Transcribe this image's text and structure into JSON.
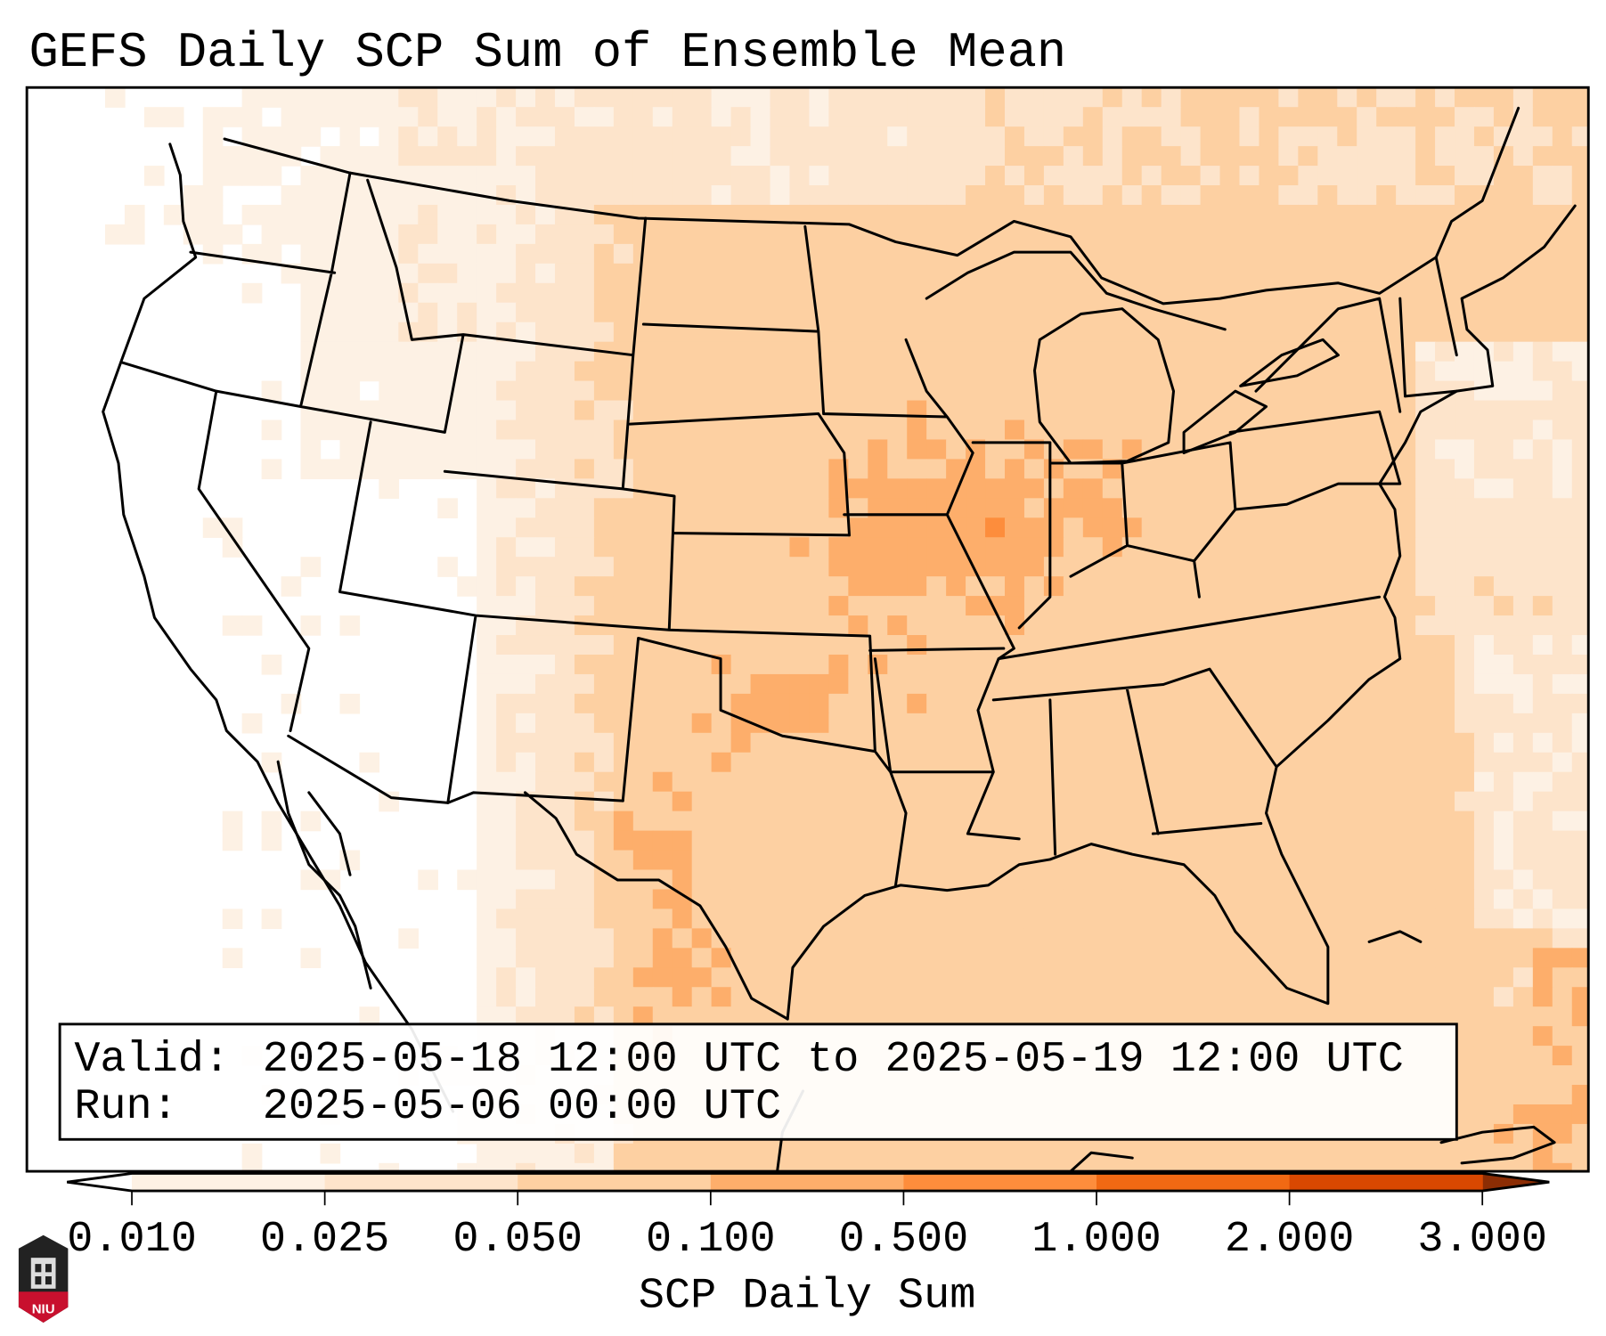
{
  "title": "GEFS Daily SCP Sum of Ensemble Mean",
  "info_box": {
    "valid_label": "Valid:",
    "valid_value": "2025-05-18 12:00 UTC to 2025-05-19 12:00 UTC",
    "run_label": "Run:",
    "run_value": "2025-05-06 00:00 UTC"
  },
  "colorbar": {
    "label": "SCP Daily Sum",
    "ticks": [
      "0.010",
      "0.025",
      "0.050",
      "0.100",
      "0.500",
      "1.000",
      "2.000",
      "3.000"
    ],
    "colors": [
      "#fdf1e4",
      "#fde4cb",
      "#fdd0a2",
      "#fdae6b",
      "#fd8d3c",
      "#f16913",
      "#d94801"
    ],
    "under_color": "#ffffff",
    "over_color": "#8c2d04"
  },
  "logo": {
    "text": "NIU"
  }
}
